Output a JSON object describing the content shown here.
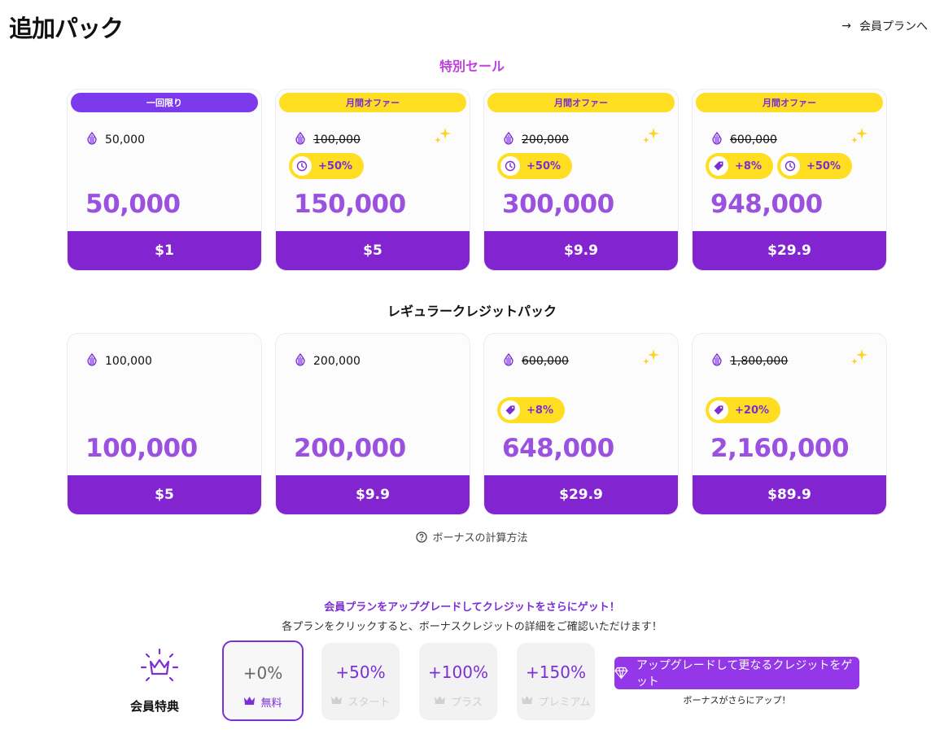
{
  "header": {
    "title": "追加パック",
    "plan_link": "会員プランへ",
    "arrow": "→"
  },
  "sale": {
    "title": "特別セール",
    "cards": [
      {
        "ribbon": "一回限り",
        "ribbon_style": "purple",
        "base": "50,000",
        "strike": false,
        "sparkle": false,
        "bonuses": [],
        "total": "50,000",
        "price": "$1"
      },
      {
        "ribbon": "月間オファー",
        "ribbon_style": "yellow",
        "base": "100,000",
        "strike": true,
        "sparkle": true,
        "bonuses": [
          {
            "icon": "clock-icon",
            "text": "+50%"
          }
        ],
        "total": "150,000",
        "price": "$5"
      },
      {
        "ribbon": "月間オファー",
        "ribbon_style": "yellow",
        "base": "200,000",
        "strike": true,
        "sparkle": true,
        "bonuses": [
          {
            "icon": "clock-icon",
            "text": "+50%"
          }
        ],
        "total": "300,000",
        "price": "$9.9"
      },
      {
        "ribbon": "月間オファー",
        "ribbon_style": "yellow",
        "base": "600,000",
        "strike": true,
        "sparkle": true,
        "bonuses": [
          {
            "icon": "tag-icon",
            "text": "+8%"
          },
          {
            "icon": "clock-icon",
            "text": "+50%"
          }
        ],
        "total": "948,000",
        "price": "$29.9"
      }
    ]
  },
  "regular": {
    "title": "レギュラークレジットパック",
    "cards": [
      {
        "base": "100,000",
        "strike": false,
        "sparkle": false,
        "bonuses": [],
        "total": "100,000",
        "price": "$5"
      },
      {
        "base": "200,000",
        "strike": false,
        "sparkle": false,
        "bonuses": [],
        "total": "200,000",
        "price": "$9.9"
      },
      {
        "base": "600,000",
        "strike": true,
        "sparkle": true,
        "bonuses": [
          {
            "icon": "tag-icon",
            "text": "+8%"
          }
        ],
        "total": "648,000",
        "price": "$29.9"
      },
      {
        "base": "1,800,000",
        "strike": true,
        "sparkle": true,
        "bonuses": [
          {
            "icon": "tag-icon",
            "text": "+20%"
          }
        ],
        "total": "2,160,000",
        "price": "$89.9"
      }
    ]
  },
  "calc_link": "ボーナスの計算方法",
  "upgrade": {
    "title": "会員プランをアップグレードしてクレジットをさらにゲット！",
    "subtitle": "各プランをクリックすると、ボーナスクレジットの詳細をご確認いただけます！",
    "perk_label": "会員特典",
    "tiers": [
      {
        "pct": "+0%",
        "name": "無料",
        "active": true
      },
      {
        "pct": "+50%",
        "name": "スタート",
        "active": false
      },
      {
        "pct": "+100%",
        "name": "プラス",
        "active": false
      },
      {
        "pct": "+150%",
        "name": "プレミアム",
        "active": false
      }
    ],
    "cta_label": "アップグレードして更なるクレジットをゲット",
    "cta_sub": "ボーナスがさらにアップ！"
  },
  "colors": {
    "accent": "#8224d0",
    "bonus": "#ffde21",
    "total": "#9b51e0",
    "sale_title": "#c13ee0"
  }
}
